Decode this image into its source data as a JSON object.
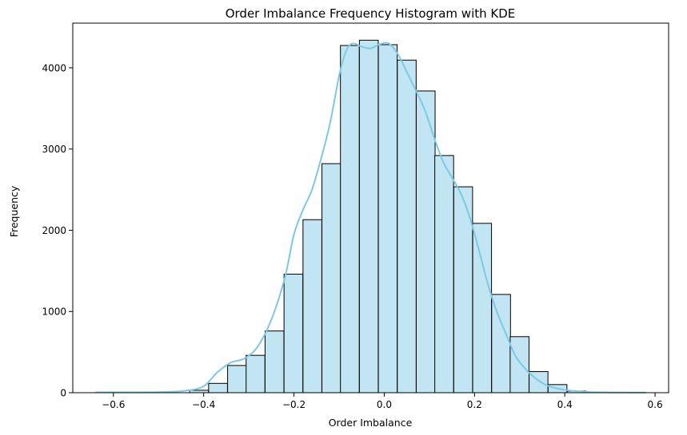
{
  "chart_data": {
    "type": "bar",
    "title": "Order Imbalance Frequency Histogram with KDE",
    "xlabel": "Order Imbalance",
    "ylabel": "Frequency",
    "xlim": [
      -0.69,
      0.63
    ],
    "ylim": [
      0,
      4550
    ],
    "xticks": [
      -0.6,
      -0.4,
      -0.2,
      0.0,
      0.2,
      0.4,
      0.6
    ],
    "xtick_labels": [
      "−0.6",
      "−0.4",
      "−0.2",
      "0.0",
      "0.2",
      "0.4",
      "0.6"
    ],
    "yticks": [
      0,
      1000,
      2000,
      3000,
      4000
    ],
    "ytick_labels": [
      "0",
      "1000",
      "2000",
      "3000",
      "4000"
    ],
    "bin_width": 0.0417,
    "bins": [
      {
        "x0": -0.641,
        "value": 0
      },
      {
        "x0": -0.599,
        "value": 0
      },
      {
        "x0": -0.557,
        "value": 0
      },
      {
        "x0": -0.515,
        "value": 0
      },
      {
        "x0": -0.473,
        "value": 0
      },
      {
        "x0": -0.431,
        "value": 30
      },
      {
        "x0": -0.389,
        "value": 115
      },
      {
        "x0": -0.347,
        "value": 335
      },
      {
        "x0": -0.306,
        "value": 460
      },
      {
        "x0": -0.264,
        "value": 760
      },
      {
        "x0": -0.222,
        "value": 1460
      },
      {
        "x0": -0.18,
        "value": 2130
      },
      {
        "x0": -0.138,
        "value": 2820
      },
      {
        "x0": -0.097,
        "value": 4275
      },
      {
        "x0": -0.055,
        "value": 4340
      },
      {
        "x0": -0.013,
        "value": 4285
      },
      {
        "x0": 0.029,
        "value": 4095
      },
      {
        "x0": 0.071,
        "value": 3715
      },
      {
        "x0": 0.112,
        "value": 2920
      },
      {
        "x0": 0.154,
        "value": 2535
      },
      {
        "x0": 0.196,
        "value": 2085
      },
      {
        "x0": 0.238,
        "value": 1210
      },
      {
        "x0": 0.279,
        "value": 690
      },
      {
        "x0": 0.321,
        "value": 260
      },
      {
        "x0": 0.363,
        "value": 100
      },
      {
        "x0": 0.405,
        "value": 20
      },
      {
        "x0": 0.447,
        "value": 0
      },
      {
        "x0": 0.489,
        "value": 0
      },
      {
        "x0": 0.53,
        "value": 0
      }
    ],
    "kde": {
      "x": [
        -0.64,
        -0.5,
        -0.44,
        -0.4,
        -0.37,
        -0.34,
        -0.31,
        -0.28,
        -0.25,
        -0.22,
        -0.2,
        -0.18,
        -0.16,
        -0.14,
        -0.12,
        -0.1,
        -0.085,
        -0.07,
        -0.05,
        -0.03,
        -0.01,
        0.01,
        0.03,
        0.05,
        0.07,
        0.09,
        0.11,
        0.13,
        0.15,
        0.17,
        0.19,
        0.21,
        0.23,
        0.25,
        0.27,
        0.29,
        0.31,
        0.33,
        0.36,
        0.4,
        0.45,
        0.5,
        0.58
      ],
      "y": [
        5,
        8,
        25,
        80,
        250,
        370,
        420,
        570,
        900,
        1420,
        1950,
        2250,
        2500,
        2880,
        3320,
        3900,
        4200,
        4300,
        4260,
        4240,
        4290,
        4300,
        4170,
        3950,
        3720,
        3480,
        3150,
        2850,
        2650,
        2450,
        2150,
        1750,
        1330,
        990,
        720,
        460,
        310,
        200,
        90,
        35,
        10,
        4,
        2
      ]
    },
    "colors": {
      "bar_fill": "#c2e5f3",
      "bar_edge": "#000000",
      "kde_line": "#7ec8e3"
    },
    "grid": false
  }
}
